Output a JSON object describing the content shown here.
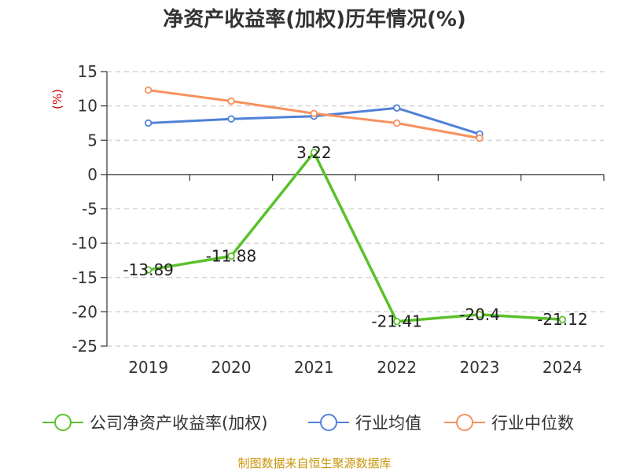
{
  "chart_data": {
    "type": "line",
    "title": "净资产收益率(加权)历年情况(%)",
    "y_unit": "(%)",
    "categories": [
      "2019",
      "2020",
      "2021",
      "2022",
      "2023",
      "2024"
    ],
    "ylim": [
      -25,
      15
    ],
    "yticks": [
      "15",
      "10",
      "5",
      "0",
      "-5",
      "-10",
      "-15",
      "-20",
      "-25"
    ],
    "grid": true,
    "legend_position": "bottom",
    "series": [
      {
        "name": "公司净资产收益率(加权)",
        "color": "#5ac12a",
        "values": [
          -13.89,
          -11.88,
          3.22,
          -21.41,
          -20.4,
          -21.12
        ],
        "labels": [
          "-13.89",
          "-11.88",
          "3.22",
          "-21.41",
          "-20.4",
          "-21.12"
        ]
      },
      {
        "name": "行业均值",
        "color": "#4f81d8",
        "values": [
          7.5,
          8.1,
          8.5,
          9.7,
          5.9,
          null
        ],
        "labels": []
      },
      {
        "name": "行业中位数",
        "color": "#f7915d",
        "values": [
          12.3,
          10.7,
          8.9,
          7.5,
          5.3,
          null
        ],
        "labels": []
      }
    ]
  },
  "source": "制图数据来自恒生聚源数据库"
}
